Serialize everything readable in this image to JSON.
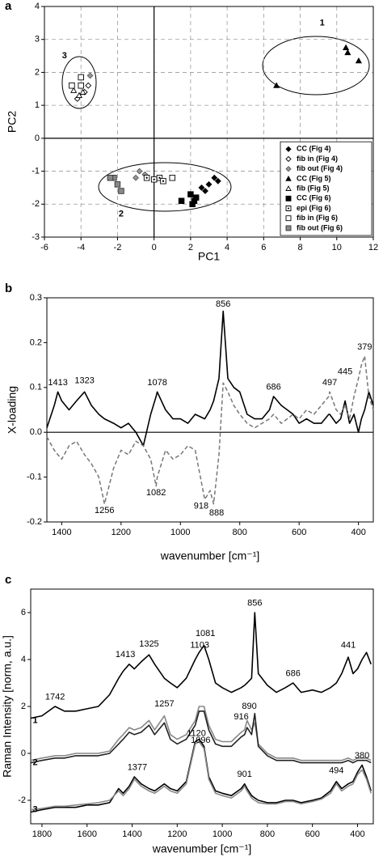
{
  "chart_data": [
    {
      "type": "scatter",
      "panel_label": "a",
      "xlabel": "PC1",
      "ylabel": "PC2",
      "xlim": [
        -6,
        12
      ],
      "xticks": [
        -6,
        -4,
        -2,
        0,
        2,
        4,
        6,
        8,
        10,
        12
      ],
      "ylim": [
        -3,
        4
      ],
      "yticks": [
        -3,
        -2,
        -1,
        0,
        1,
        2,
        3,
        4
      ],
      "grid": true,
      "zero_lines": [
        "x",
        "y"
      ],
      "legend": "lower right",
      "annotations": [
        {
          "text": "1",
          "x": 9.2,
          "y": 3.5,
          "bold": true
        },
        {
          "text": "2",
          "x": -1.8,
          "y": -2.3,
          "bold": true
        },
        {
          "text": "3",
          "x": -4.9,
          "y": 2.5,
          "bold": true
        }
      ],
      "series": [
        {
          "name": "CC (Fig 4)",
          "marker": "diamond",
          "color": "#000000",
          "fill": "#000000",
          "x": [
            2.6,
            3.0,
            3.3,
            2.8,
            3.5
          ],
          "y": [
            -1.5,
            -1.4,
            -1.2,
            -1.6,
            -1.3
          ]
        },
        {
          "name": "fib in (Fig 4)",
          "marker": "diamond",
          "color": "#000000",
          "fill": "#ffffff",
          "x": [
            -3.8,
            -3.6,
            -4.2
          ],
          "y": [
            1.4,
            1.6,
            1.2
          ]
        },
        {
          "name": "fib out (Fig 4)",
          "marker": "diamond",
          "color": "#555555",
          "fill": "#999999",
          "x": [
            -0.8,
            -1.0,
            -0.5,
            -3.5
          ],
          "y": [
            -1.0,
            -1.2,
            -1.1,
            1.9
          ]
        },
        {
          "name": "CC (Fig 5)",
          "marker": "triangle",
          "color": "#000000",
          "fill": "#000000",
          "x": [
            10.5,
            10.6,
            11.2,
            6.7
          ],
          "y": [
            2.75,
            2.6,
            2.35,
            1.6
          ]
        },
        {
          "name": "fib (Fig 5)",
          "marker": "triangle",
          "color": "#000000",
          "fill": "#ffffff",
          "x": [
            -4.1,
            -4.4,
            -3.9
          ],
          "y": [
            1.3,
            1.45,
            1.4
          ]
        },
        {
          "name": "CC (Fig 6)",
          "marker": "square",
          "color": "#000000",
          "fill": "#000000",
          "x": [
            1.5,
            2.0,
            2.2,
            2.3,
            2.1
          ],
          "y": [
            -1.9,
            -1.7,
            -1.9,
            -1.8,
            -2.0
          ]
        },
        {
          "name": "epi (Fig 6)",
          "marker": "square-dot",
          "color": "#000000",
          "fill": "#ffffff",
          "x": [
            0.3,
            0.0,
            0.5,
            -0.4
          ],
          "y": [
            -1.2,
            -1.25,
            -1.3,
            -1.2
          ]
        },
        {
          "name": "fib in (Fig 6)",
          "marker": "square",
          "color": "#000000",
          "fill": "#ffffff",
          "x": [
            -4.0,
            -4.0,
            1.0,
            -4.5
          ],
          "y": [
            1.85,
            1.6,
            -1.2,
            1.6
          ]
        },
        {
          "name": "fib out (Fig 6)",
          "marker": "square",
          "color": "#333333",
          "fill": "#888888",
          "x": [
            -2.2,
            -2.0,
            -1.8,
            -2.4
          ],
          "y": [
            -1.2,
            -1.4,
            -1.6,
            -1.2
          ]
        }
      ]
    },
    {
      "type": "line",
      "panel_label": "b",
      "xlabel": "wavenumber [cm⁻¹]",
      "ylabel": "X-loading",
      "xlim": [
        1450,
        350
      ],
      "xticks": [
        1400,
        1200,
        1000,
        800,
        600,
        400
      ],
      "ylim": [
        -0.2,
        0.3
      ],
      "yticks": [
        -0.2,
        -0.1,
        {
          "value": 0,
          "label": "0.0"
        },
        0.1,
        0.2,
        0.3
      ],
      "grid": false,
      "zero_lines": [
        "y"
      ],
      "x": [
        1450,
        1425,
        1413,
        1400,
        1375,
        1350,
        1323,
        1300,
        1275,
        1256,
        1225,
        1200,
        1175,
        1150,
        1125,
        1100,
        1082,
        1078,
        1050,
        1025,
        1000,
        975,
        950,
        918,
        900,
        888,
        870,
        856,
        840,
        820,
        800,
        775,
        750,
        725,
        700,
        686,
        660,
        640,
        620,
        600,
        575,
        550,
        525,
        500,
        497,
        475,
        460,
        445,
        430,
        415,
        400,
        390,
        379,
        365,
        350
      ],
      "series": [
        {
          "color": "#000000",
          "dash": false,
          "values": [
            0.01,
            0.06,
            0.09,
            0.07,
            0.05,
            0.07,
            0.09,
            0.06,
            0.04,
            0.03,
            0.02,
            0.01,
            0.02,
            0.0,
            -0.03,
            0.04,
            0.08,
            0.09,
            0.05,
            0.03,
            0.03,
            0.02,
            0.04,
            0.03,
            0.05,
            0.07,
            0.12,
            0.27,
            0.12,
            0.1,
            0.09,
            0.04,
            0.03,
            0.03,
            0.05,
            0.08,
            0.06,
            0.05,
            0.04,
            0.02,
            0.03,
            0.02,
            0.02,
            0.04,
            0.04,
            0.02,
            0.03,
            0.07,
            0.02,
            0.04,
            0.0,
            0.03,
            0.05,
            0.09,
            0.06
          ]
        },
        {
          "color": "#777777",
          "dash": true,
          "values": [
            -0.01,
            -0.04,
            -0.05,
            -0.06,
            -0.03,
            -0.02,
            -0.05,
            -0.07,
            -0.1,
            -0.16,
            -0.08,
            -0.04,
            -0.05,
            -0.02,
            -0.03,
            -0.06,
            -0.12,
            -0.1,
            -0.04,
            -0.06,
            -0.05,
            -0.03,
            -0.04,
            -0.15,
            -0.13,
            -0.16,
            -0.05,
            0.11,
            0.09,
            0.06,
            0.04,
            0.02,
            0.01,
            0.02,
            0.03,
            0.04,
            0.02,
            0.03,
            0.04,
            0.03,
            0.05,
            0.04,
            0.06,
            0.08,
            0.09,
            0.05,
            0.04,
            0.06,
            0.03,
            0.08,
            0.12,
            0.15,
            0.17,
            0.08,
            0.05
          ]
        }
      ],
      "annotations": [
        {
          "text": "1413",
          "x": 1413,
          "y": 0.11
        },
        {
          "text": "1323",
          "x": 1323,
          "y": 0.115
        },
        {
          "text": "1078",
          "x": 1078,
          "y": 0.11
        },
        {
          "text": "856",
          "x": 856,
          "y": 0.285
        },
        {
          "text": "686",
          "x": 686,
          "y": 0.1
        },
        {
          "text": "497",
          "x": 497,
          "y": 0.11,
          "gray": true
        },
        {
          "text": "445",
          "x": 445,
          "y": 0.135
        },
        {
          "text": "379",
          "x": 379,
          "y": 0.19,
          "gray": true
        },
        {
          "text": "1256",
          "x": 1256,
          "y": -0.175,
          "gray": true
        },
        {
          "text": "1082",
          "x": 1082,
          "y": -0.135,
          "gray": true
        },
        {
          "text": "918",
          "x": 930,
          "y": -0.165,
          "gray": true
        },
        {
          "text": "888",
          "x": 878,
          "y": -0.18,
          "gray": true
        }
      ]
    },
    {
      "type": "line",
      "panel_label": "c",
      "xlabel": "wavenumber [cm⁻¹]",
      "ylabel": "Raman Intensity [norm, a.u.]",
      "xlim": [
        1850,
        330
      ],
      "xticks": [
        1800,
        1600,
        1400,
        1200,
        1000,
        800,
        600,
        400
      ],
      "ylim": [
        -3,
        7
      ],
      "yticks": [
        -2,
        0,
        2,
        4,
        6
      ],
      "grid": false,
      "zero_lines": [],
      "x": [
        1850,
        1800,
        1742,
        1700,
        1650,
        1600,
        1550,
        1500,
        1460,
        1440,
        1413,
        1390,
        1360,
        1325,
        1300,
        1257,
        1230,
        1200,
        1160,
        1120,
        1103,
        1081,
        1060,
        1030,
        1000,
        960,
        916,
        901,
        890,
        870,
        856,
        840,
        800,
        760,
        720,
        686,
        650,
        600,
        560,
        520,
        494,
        470,
        441,
        420,
        400,
        380,
        360,
        340
      ],
      "series": [
        {
          "color": "#000000",
          "dash": false,
          "values": [
            1.5,
            1.6,
            2.0,
            1.8,
            1.8,
            1.9,
            2.0,
            2.5,
            3.2,
            3.5,
            3.8,
            3.6,
            3.9,
            4.2,
            3.8,
            3.2,
            3.0,
            2.8,
            3.2,
            4.0,
            4.3,
            4.6,
            4.0,
            3.0,
            2.8,
            2.6,
            2.8,
            2.9,
            3.0,
            3.2,
            6.0,
            3.4,
            2.9,
            2.6,
            2.8,
            3.0,
            2.6,
            2.7,
            2.6,
            2.8,
            3.0,
            3.4,
            4.1,
            3.4,
            3.6,
            4.0,
            4.3,
            3.8
          ]
        },
        {
          "color": "#888888",
          "dash": false,
          "values": [
            -0.3,
            -0.2,
            -0.1,
            -0.1,
            0.0,
            0.0,
            0.0,
            0.1,
            0.6,
            0.8,
            1.1,
            1.0,
            1.1,
            1.4,
            1.0,
            1.6,
            0.8,
            0.6,
            0.8,
            1.4,
            2.0,
            2.0,
            1.2,
            0.6,
            0.5,
            0.5,
            0.9,
            1.0,
            1.4,
            1.0,
            1.3,
            0.4,
            0.0,
            -0.2,
            -0.2,
            -0.2,
            -0.3,
            -0.3,
            -0.3,
            -0.3,
            -0.3,
            -0.3,
            -0.2,
            -0.3,
            -0.2,
            -0.2,
            -0.2,
            -0.3
          ]
        },
        {
          "color": "#222222",
          "dash": false,
          "values": [
            -0.4,
            -0.3,
            -0.2,
            -0.2,
            -0.1,
            -0.1,
            -0.1,
            0.0,
            0.4,
            0.6,
            0.9,
            0.8,
            0.9,
            1.2,
            0.8,
            1.3,
            0.6,
            0.4,
            0.6,
            1.2,
            1.8,
            1.8,
            1.0,
            0.4,
            0.3,
            0.3,
            0.7,
            0.8,
            1.1,
            0.8,
            1.7,
            0.3,
            -0.1,
            -0.3,
            -0.3,
            -0.3,
            -0.4,
            -0.4,
            -0.4,
            -0.4,
            -0.4,
            -0.4,
            -0.3,
            -0.4,
            -0.3,
            -0.3,
            -0.3,
            -0.4
          ]
        },
        {
          "color": "#000000",
          "dash": false,
          "values": [
            -2.5,
            -2.4,
            -2.3,
            -2.3,
            -2.3,
            -2.2,
            -2.2,
            -2.1,
            -1.5,
            -1.7,
            -1.4,
            -1.0,
            -1.3,
            -1.5,
            -1.6,
            -1.3,
            -1.5,
            -1.6,
            -1.2,
            0.5,
            0.6,
            0.3,
            -1.0,
            -1.6,
            -1.7,
            -1.8,
            -1.5,
            -1.3,
            -1.5,
            -1.8,
            -1.9,
            -2.0,
            -2.1,
            -2.1,
            -2.0,
            -2.0,
            -2.1,
            -2.0,
            -1.9,
            -1.6,
            -1.2,
            -1.5,
            -1.3,
            -1.2,
            -0.8,
            -0.5,
            -1.0,
            -1.6
          ]
        },
        {
          "color": "#888888",
          "dash": false,
          "values": [
            -2.4,
            -2.35,
            -2.25,
            -2.25,
            -2.2,
            -2.15,
            -2.1,
            -2.0,
            -1.6,
            -1.8,
            -1.5,
            -1.1,
            -1.4,
            -1.6,
            -1.7,
            -1.4,
            -1.6,
            -1.7,
            -1.3,
            0.4,
            0.5,
            0.2,
            -1.1,
            -1.7,
            -1.8,
            -1.9,
            -1.6,
            -1.4,
            -1.6,
            -1.9,
            -2.0,
            -2.1,
            -2.15,
            -2.15,
            -2.05,
            -2.05,
            -2.15,
            -2.05,
            -1.95,
            -1.7,
            -1.3,
            -1.6,
            -1.4,
            -1.3,
            -0.9,
            -0.7,
            -1.1,
            -1.7
          ]
        }
      ],
      "annotations": [
        {
          "text": "856",
          "x": 856,
          "y": 6.4
        },
        {
          "text": "1081",
          "x": 1075,
          "y": 5.1
        },
        {
          "text": "1103",
          "x": 1100,
          "y": 4.6
        },
        {
          "text": "1325",
          "x": 1325,
          "y": 4.65
        },
        {
          "text": "1413",
          "x": 1430,
          "y": 4.2
        },
        {
          "text": "1742",
          "x": 1742,
          "y": 2.4
        },
        {
          "text": "686",
          "x": 686,
          "y": 3.4
        },
        {
          "text": "441",
          "x": 441,
          "y": 4.6
        },
        {
          "text": "1257",
          "x": 1257,
          "y": 2.1
        },
        {
          "text": "890",
          "x": 880,
          "y": 2.0
        },
        {
          "text": "916",
          "x": 916,
          "y": 1.55
        },
        {
          "text": "1096",
          "x": 1096,
          "y": 0.55
        },
        {
          "text": "1377",
          "x": 1377,
          "y": -0.6
        },
        {
          "text": "1120",
          "x": 1115,
          "y": 0.85
        },
        {
          "text": "901",
          "x": 901,
          "y": -0.9
        },
        {
          "text": "494",
          "x": 494,
          "y": -0.75
        },
        {
          "text": "380",
          "x": 380,
          "y": -0.1
        },
        {
          "text": "1",
          "x": 1830,
          "y": 1.4,
          "bold": true
        },
        {
          "text": "2",
          "x": 1830,
          "y": -0.4,
          "bold": true
        },
        {
          "text": "3",
          "x": 1830,
          "y": -2.4,
          "bold": true
        }
      ]
    }
  ]
}
